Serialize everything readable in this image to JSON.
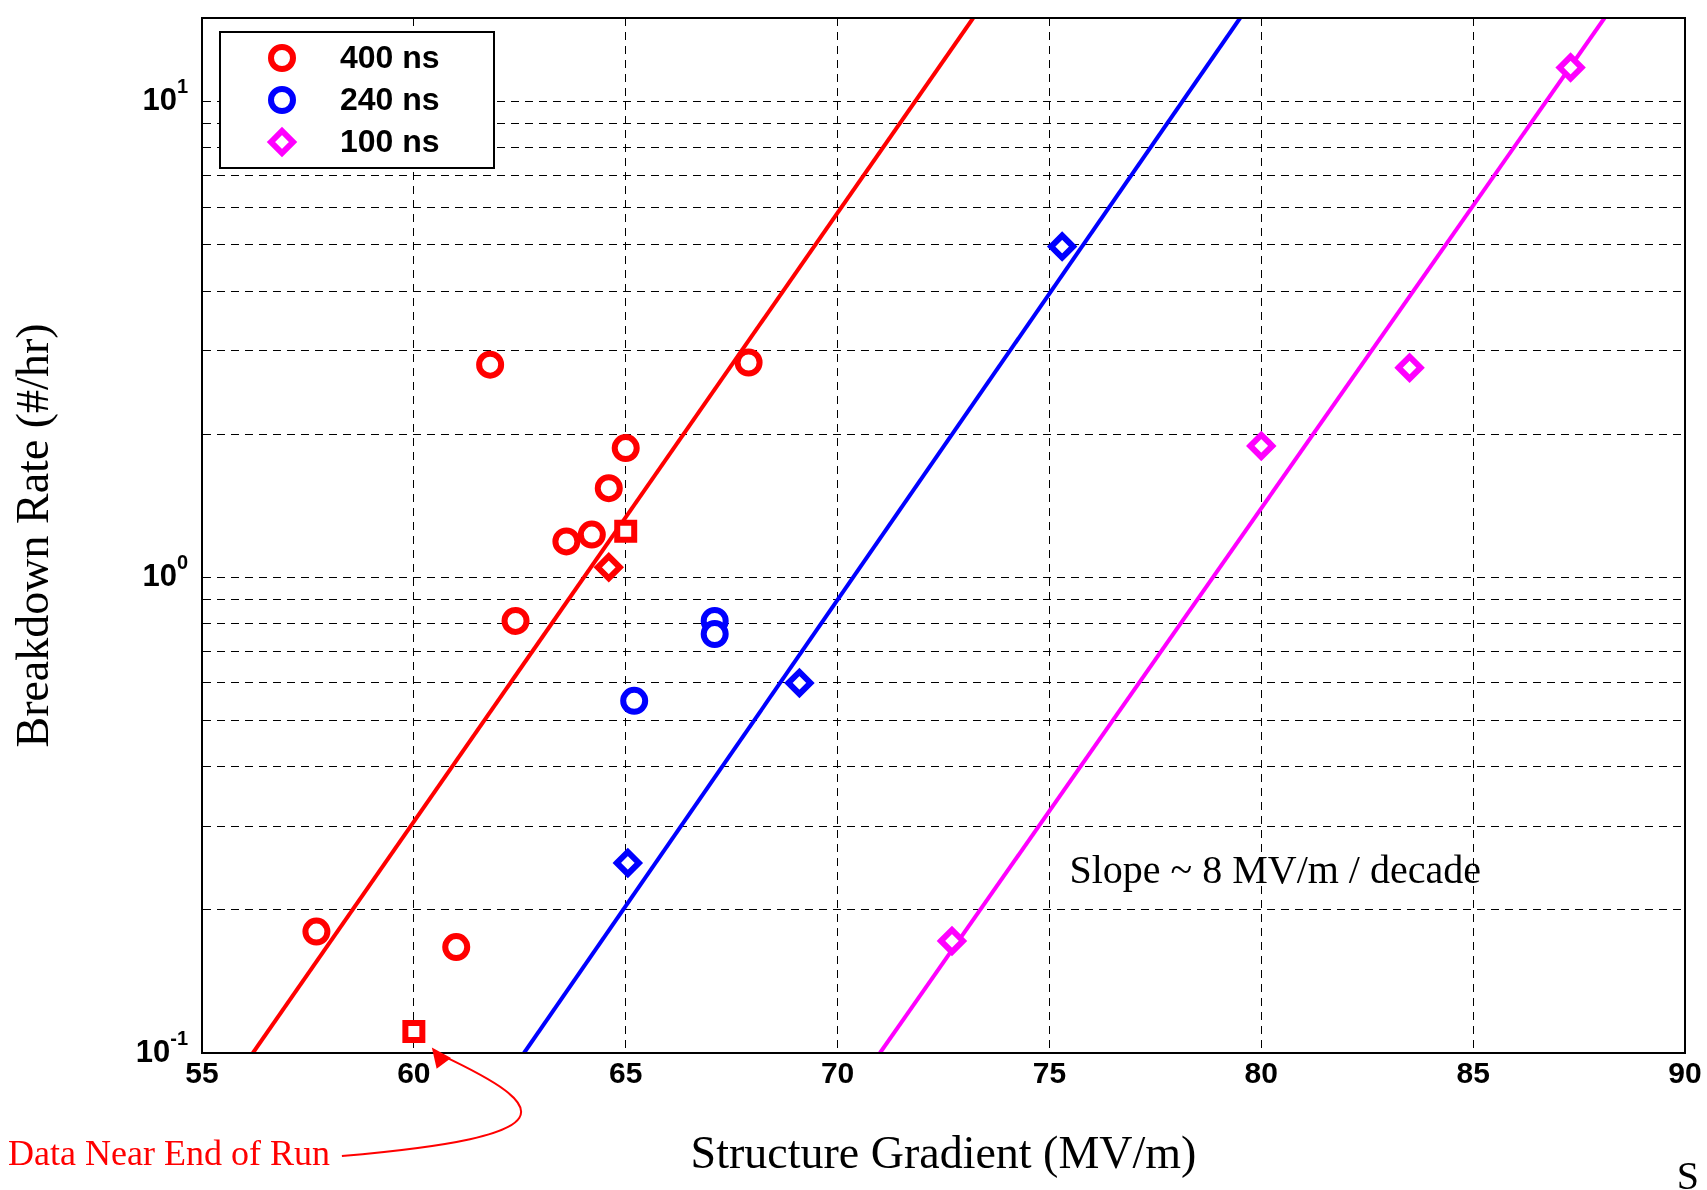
{
  "chart_data": {
    "type": "scatter",
    "xlabel": "Structure Gradient (MV/m)",
    "ylabel": "Breakdown Rate (#/hr)",
    "xlim": [
      55,
      90
    ],
    "xticks": [
      55,
      60,
      65,
      70,
      75,
      80,
      85,
      90
    ],
    "ylim": [
      0.1,
      15
    ],
    "yticks": [
      {
        "value": 0.1,
        "label": "10$^{-1}$"
      },
      {
        "value": 0.2,
        "label": null
      },
      {
        "value": 0.3,
        "label": null
      },
      {
        "value": 0.4,
        "label": null
      },
      {
        "value": 0.5,
        "label": null
      },
      {
        "value": 0.6,
        "label": null
      },
      {
        "value": 0.7,
        "label": null
      },
      {
        "value": 0.8,
        "label": null
      },
      {
        "value": 0.9,
        "label": null
      },
      {
        "value": 1,
        "label": "10$^{0}$"
      },
      {
        "value": 2,
        "label": null
      },
      {
        "value": 3,
        "label": null
      },
      {
        "value": 4,
        "label": null
      },
      {
        "value": 5,
        "label": null
      },
      {
        "value": 6,
        "label": null
      },
      {
        "value": 7,
        "label": null
      },
      {
        "value": 8,
        "label": null
      },
      {
        "value": 9,
        "label": null
      },
      {
        "value": 10,
        "label": "10$^{1}$"
      }
    ],
    "log": true,
    "grid": true,
    "legend": "top left",
    "series": [
      {
        "name": "400 ns",
        "color": "#ff0000",
        "marker": "circle",
        "x": [
          61.8,
          67.9,
          65.0,
          64.6,
          64.2,
          63.6,
          62.4,
          57.7,
          61.0
        ],
        "values": [
          2.8,
          2.83,
          1.87,
          1.54,
          1.23,
          1.19,
          0.81,
          0.18,
          0.167
        ]
      },
      {
        "color": "#ff0000",
        "marker": "square",
        "x": [
          65.0,
          60.0
        ],
        "values": [
          1.25,
          0.111
        ]
      },
      {
        "color": "#ff0000",
        "marker": "diamond",
        "x": [
          64.6
        ],
        "values": [
          1.05
        ]
      },
      {
        "type": "line",
        "color": "#ff0000",
        "marker": "none",
        "x": [
          56.2,
          73.2
        ],
        "values": [
          0.1,
          15
        ]
      },
      {
        "name": "240 ns",
        "color": "#0000ff",
        "marker": "circle",
        "x": [
          67.1,
          67.1,
          65.2
        ],
        "values": [
          0.81,
          0.76,
          0.55
        ]
      },
      {
        "color": "#0000ff",
        "marker": "diamond",
        "x": [
          75.3,
          69.1,
          65.05
        ],
        "values": [
          4.96,
          0.6,
          0.251
        ]
      },
      {
        "type": "line",
        "color": "#0000ff",
        "marker": "none",
        "x": [
          62.6,
          79.5
        ],
        "values": [
          0.1,
          15
        ]
      },
      {
        "name": "100 ns",
        "color": "#ff00ff",
        "marker": "diamond",
        "x": [
          87.3,
          83.5,
          80.0,
          72.7
        ],
        "values": [
          11.8,
          2.76,
          1.89,
          0.172
        ]
      },
      {
        "type": "line",
        "color": "#ff00ff",
        "marker": "none",
        "x": [
          71.0,
          88.1
        ],
        "values": [
          0.1,
          15
        ]
      }
    ],
    "annotations": [
      "Slope ~ 8 MV/m / decade",
      "Data Near End of Run",
      "S"
    ]
  }
}
